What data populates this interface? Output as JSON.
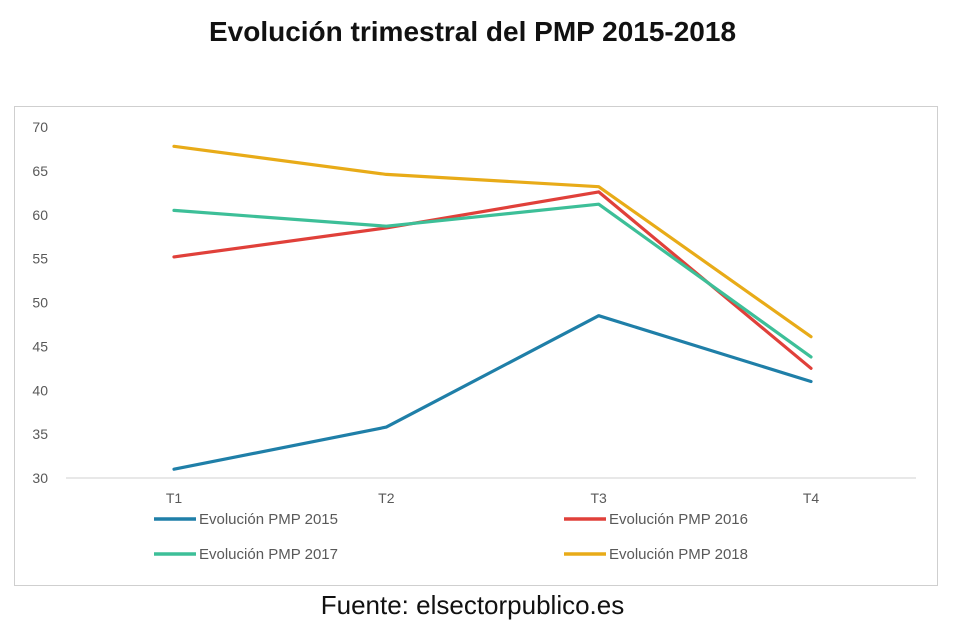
{
  "chart_data": {
    "type": "line",
    "title": "Evolución trimestral del PMP 2015-2018",
    "categories": [
      "T1",
      "T2",
      "T3",
      "T4"
    ],
    "ylim": [
      30,
      70
    ],
    "yticks": [
      30,
      35,
      40,
      45,
      50,
      55,
      60,
      65,
      70
    ],
    "xlabel": "",
    "ylabel": "",
    "grid": false,
    "legend": "bottom",
    "series": [
      {
        "name": "Evolución PMP 2015",
        "color": "#1f7fa8",
        "values": [
          31.0,
          35.8,
          48.5,
          41.0
        ]
      },
      {
        "name": "Evolución PMP 2016",
        "color": "#e0403a",
        "values": [
          55.2,
          58.5,
          62.6,
          42.5
        ]
      },
      {
        "name": "Evolución PMP 2017",
        "color": "#3dbf98",
        "values": [
          60.5,
          58.7,
          61.2,
          43.8
        ]
      },
      {
        "name": "Evolución PMP 2018",
        "color": "#e8ab18",
        "values": [
          67.8,
          64.6,
          63.2,
          46.1
        ]
      }
    ]
  },
  "source": "Fuente: elsectorpublico.es"
}
